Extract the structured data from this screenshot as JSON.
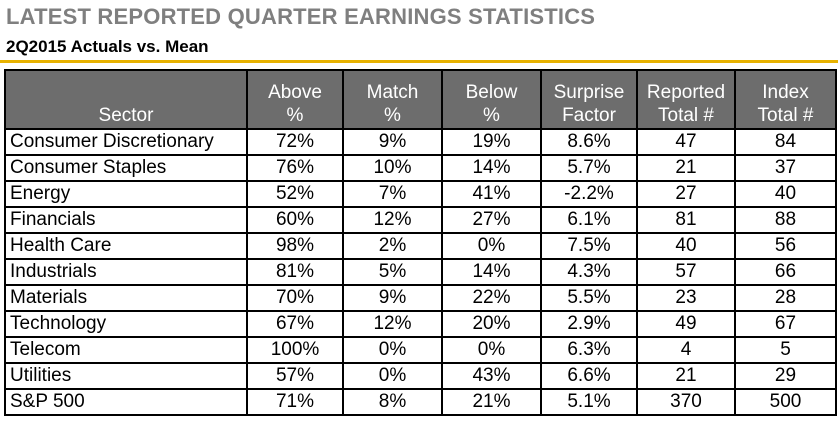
{
  "title": "LATEST REPORTED QUARTER EARNINGS STATISTICS",
  "subtitle": "2Q2015 Actuals vs. Mean",
  "colors": {
    "header_bg": "#6d6d6d",
    "rule": "#e8b200",
    "title": "#7f7f7f"
  },
  "columns": [
    {
      "line1": "",
      "line2": "Sector"
    },
    {
      "line1": "Above",
      "line2": "%"
    },
    {
      "line1": "Match",
      "line2": "%"
    },
    {
      "line1": "Below",
      "line2": "%"
    },
    {
      "line1": "Surprise",
      "line2": "Factor"
    },
    {
      "line1": "Reported",
      "line2": "Total #"
    },
    {
      "line1": "Index",
      "line2": "Total #"
    }
  ],
  "rows": [
    [
      "Consumer Discretionary",
      "72%",
      "9%",
      "19%",
      "8.6%",
      "47",
      "84"
    ],
    [
      "Consumer Staples",
      "76%",
      "10%",
      "14%",
      "5.7%",
      "21",
      "37"
    ],
    [
      "Energy",
      "52%",
      "7%",
      "41%",
      "-2.2%",
      "27",
      "40"
    ],
    [
      "Financials",
      "60%",
      "12%",
      "27%",
      "6.1%",
      "81",
      "88"
    ],
    [
      "Health Care",
      "98%",
      "2%",
      "0%",
      "7.5%",
      "40",
      "56"
    ],
    [
      "Industrials",
      "81%",
      "5%",
      "14%",
      "4.3%",
      "57",
      "66"
    ],
    [
      "Materials",
      "70%",
      "9%",
      "22%",
      "5.5%",
      "23",
      "28"
    ],
    [
      "Technology",
      "67%",
      "12%",
      "20%",
      "2.9%",
      "49",
      "67"
    ],
    [
      "Telecom",
      "100%",
      "0%",
      "0%",
      "6.3%",
      "4",
      "5"
    ],
    [
      "Utilities",
      "57%",
      "0%",
      "43%",
      "6.6%",
      "21",
      "29"
    ],
    [
      "S&P 500",
      "71%",
      "8%",
      "21%",
      "5.1%",
      "370",
      "500"
    ]
  ]
}
